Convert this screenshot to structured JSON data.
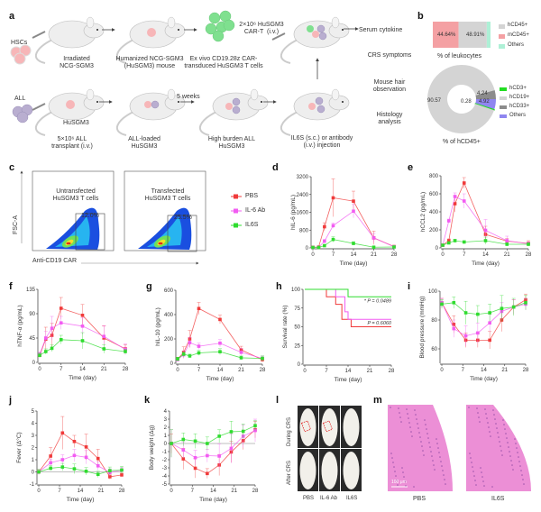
{
  "panel_labels": [
    "a",
    "b",
    "c",
    "d",
    "e",
    "f",
    "g",
    "h",
    "i",
    "j",
    "k",
    "l",
    "m"
  ],
  "a": {
    "hscs": "HSCs",
    "all": "ALL",
    "step1": "Irradiated\nNCG-SGM3",
    "step2": "Humanized NCG-SGM3\n(HuSGM3) mouse",
    "step3": "Ex vivo CD19.28z CAR-\ntransduced HuSGM3 T cells",
    "cart_dose": "2×10⁶ HuSGM3\nCAR-T  (i.v.)",
    "husgm3": "HuSGM3",
    "all_dose": "5×10⁶ ALL\ntransplant (i.v.)",
    "all_loaded": "ALL-loaded\nHuSGM3",
    "weeks": "5 weeks",
    "high_burden": "High burden ALL\nHuSGM3",
    "injection": "IL6S (s.c.) or antibody\n(i.v.) injection",
    "readouts": [
      "Serum cytokine",
      "CRS symptoms",
      "Mouse hair\nobservation",
      "Histology\nanalysis"
    ],
    "colors": {
      "hsc": "#f7b6b8",
      "all": "#b9aed0",
      "cart": "#7fe08f",
      "mouse": "#eeeeee"
    }
  },
  "b": {
    "bar": {
      "segments": [
        {
          "label": "44.64%",
          "value": 44.64,
          "color": "#f4a0a3"
        },
        {
          "label": "48.91%",
          "value": 48.91,
          "color": "#d4d4d4"
        },
        {
          "label": "",
          "value": 6.45,
          "color": "#aef0d6"
        }
      ],
      "caption": "% of leukocytes",
      "legend": [
        {
          "label": "hCD45+",
          "color": "#d4d4d4"
        },
        {
          "label": "mCD45+",
          "color": "#f4a0a3"
        },
        {
          "label": "Others",
          "color": "#aef0d6"
        }
      ]
    },
    "donut": {
      "segments": [
        {
          "label": "90.57",
          "value": 90.57,
          "color": "#d4d4d4"
        },
        {
          "label": "4.24",
          "value": 4.24,
          "color": "#8c8c8c"
        },
        {
          "label": "4.92",
          "value": 4.92,
          "color": "#8f86f0"
        },
        {
          "label": "0.28",
          "value": 0.28,
          "color": "#22dd22"
        }
      ],
      "caption": "% of hCD45+",
      "legend": [
        {
          "label": "hCD3+",
          "color": "#22dd22"
        },
        {
          "label": "hCD19+",
          "color": "#d4d4d4"
        },
        {
          "label": "hCD33+",
          "color": "#8c8c8c"
        },
        {
          "label": "Others",
          "color": "#8f86f0"
        }
      ]
    }
  },
  "c": {
    "plots": [
      {
        "title": "Untransfected\nHuSGM3 T cells",
        "gate": "12.0%"
      },
      {
        "title": "Transfected\nHuSGM3 T cells",
        "gate": "25.5%"
      }
    ],
    "ylabel": "FSC-A",
    "xlabel": "Anti-CD19 CAR"
  },
  "legend": [
    {
      "label": "PBS",
      "color": "#f03a3a"
    },
    {
      "label": "IL-6 Ab",
      "color": "#f25cf2"
    },
    {
      "label": "IL6S",
      "color": "#2fdc2f"
    }
  ],
  "chart_data": [
    {
      "id": "d",
      "type": "line",
      "xlabel": "Time (day)",
      "ylabel": "hIL-6 (pg/mL)",
      "xlim": [
        0,
        28
      ],
      "ylim": [
        0,
        3200
      ],
      "xticks": [
        0,
        7,
        14,
        21,
        28
      ],
      "yticks": [
        0,
        800,
        1600,
        2400,
        3200
      ],
      "x": [
        0,
        2,
        4,
        7,
        14,
        21,
        28
      ],
      "series": [
        {
          "name": "PBS",
          "values": [
            30,
            40,
            950,
            2250,
            2100,
            450,
            60
          ],
          "err": [
            20,
            20,
            180,
            850,
            450,
            300,
            40
          ]
        },
        {
          "name": "IL-6 Ab",
          "values": [
            20,
            30,
            300,
            1000,
            1650,
            450,
            50
          ],
          "err": [
            10,
            10,
            80,
            120,
            300,
            200,
            30
          ]
        },
        {
          "name": "IL6S",
          "values": [
            20,
            20,
            100,
            380,
            200,
            30,
            40
          ],
          "err": [
            10,
            10,
            40,
            120,
            80,
            20,
            20
          ]
        }
      ]
    },
    {
      "id": "e",
      "type": "line",
      "xlabel": "Time (day)",
      "ylabel": "hCCL2 (pg/mL)",
      "xlim": [
        0,
        28
      ],
      "ylim": [
        0,
        800
      ],
      "xticks": [
        0,
        7,
        14,
        21,
        28
      ],
      "yticks": [
        0,
        200,
        400,
        600,
        800
      ],
      "x": [
        0,
        2,
        4,
        7,
        14,
        21,
        28
      ],
      "series": [
        {
          "name": "PBS",
          "values": [
            30,
            80,
            490,
            720,
            150,
            75,
            50
          ],
          "err": [
            10,
            20,
            90,
            60,
            90,
            30,
            30
          ]
        },
        {
          "name": "IL-6 Ab",
          "values": [
            30,
            300,
            570,
            520,
            195,
            80,
            45
          ],
          "err": [
            10,
            20,
            40,
            80,
            120,
            50,
            20
          ]
        },
        {
          "name": "IL6S",
          "values": [
            30,
            55,
            80,
            65,
            80,
            40,
            40
          ],
          "err": [
            10,
            15,
            15,
            15,
            40,
            15,
            15
          ]
        }
      ]
    },
    {
      "id": "f",
      "type": "line",
      "xlabel": "Time (day)",
      "ylabel": "hTNF-α (pg/mL)",
      "xlim": [
        0,
        28
      ],
      "ylim": [
        0,
        135
      ],
      "xticks": [
        0,
        7,
        14,
        21,
        28
      ],
      "yticks": [
        0,
        45,
        90,
        135
      ],
      "x": [
        0,
        2,
        4,
        7,
        14,
        21,
        28
      ],
      "series": [
        {
          "name": "PBS",
          "values": [
            13,
            43,
            50,
            100,
            87,
            45,
            25
          ],
          "err": [
            4,
            22,
            22,
            20,
            20,
            22,
            8
          ]
        },
        {
          "name": "IL-6 Ab",
          "values": [
            15,
            45,
            63,
            73,
            67,
            48,
            24
          ],
          "err": [
            4,
            12,
            22,
            12,
            15,
            20,
            10
          ]
        },
        {
          "name": "IL6S",
          "values": [
            13,
            20,
            26,
            42,
            40,
            25,
            20
          ],
          "err": [
            4,
            5,
            6,
            8,
            15,
            8,
            4
          ]
        }
      ]
    },
    {
      "id": "g",
      "type": "line",
      "xlabel": "Time (day)",
      "ylabel": "hIL-10 (pg/mL)",
      "xlim": [
        0,
        28
      ],
      "ylim": [
        0,
        600
      ],
      "xticks": [
        0,
        7,
        14,
        21,
        28
      ],
      "yticks": [
        0,
        200,
        400,
        600
      ],
      "x": [
        0,
        2,
        4,
        7,
        14,
        21,
        28
      ],
      "series": [
        {
          "name": "PBS",
          "values": [
            35,
            90,
            200,
            450,
            360,
            110,
            30
          ],
          "err": [
            15,
            45,
            70,
            50,
            35,
            30,
            20
          ]
        },
        {
          "name": "IL-6 Ab",
          "values": [
            30,
            70,
            170,
            140,
            165,
            90,
            40
          ],
          "err": [
            15,
            30,
            40,
            25,
            30,
            30,
            20
          ]
        },
        {
          "name": "IL6S",
          "values": [
            35,
            75,
            60,
            85,
            95,
            45,
            40
          ],
          "err": [
            15,
            20,
            15,
            20,
            25,
            15,
            20
          ]
        }
      ]
    },
    {
      "id": "h",
      "type": "step",
      "xlabel": "Time (day)",
      "ylabel": "Survival rate (%)",
      "xlim": [
        0,
        28
      ],
      "ylim": [
        0,
        100
      ],
      "xticks": [
        0,
        7,
        14,
        21,
        28
      ],
      "yticks": [
        0,
        25,
        50,
        75,
        100
      ],
      "series": [
        {
          "name": "PBS",
          "x": [
            0,
            7,
            10,
            12,
            15,
            28
          ],
          "values": [
            100,
            90,
            80,
            60,
            50,
            50
          ]
        },
        {
          "name": "IL-6 Ab",
          "x": [
            0,
            10,
            13,
            14,
            28
          ],
          "values": [
            100,
            90,
            70,
            60,
            60
          ]
        },
        {
          "name": "IL6S",
          "x": [
            0,
            14,
            28
          ],
          "values": [
            100,
            90,
            90
          ]
        }
      ],
      "annotations": [
        {
          "text": "* P = 0.0489",
          "x": 28,
          "y": 90,
          "color": "#2fdc2f"
        },
        {
          "text": "P = 0.6060",
          "x": 28,
          "y": 60,
          "color": "#f25cf2"
        }
      ]
    },
    {
      "id": "i",
      "type": "line",
      "xlabel": "Time (day)",
      "ylabel": "Blood pressure (mmHg)",
      "xlim": [
        0,
        28
      ],
      "ylim": [
        50,
        100
      ],
      "xticks": [
        0,
        7,
        14,
        21,
        28
      ],
      "yticks": [
        60,
        80,
        100
      ],
      "x": [
        0,
        4,
        8,
        12,
        16,
        20,
        24,
        28
      ],
      "series": [
        {
          "name": "PBS",
          "values": [
            92,
            77,
            66,
            66,
            66,
            80,
            89,
            94
          ],
          "err": [
            3,
            6,
            5,
            5,
            6,
            8,
            5,
            4
          ]
        },
        {
          "name": "IL-6 Ab",
          "values": [
            92,
            74,
            69,
            71,
            78,
            86,
            89,
            91
          ],
          "err": [
            3,
            6,
            7,
            7,
            6,
            6,
            5,
            4
          ]
        },
        {
          "name": "IL6S",
          "values": [
            91,
            92,
            85,
            84,
            85,
            88,
            89,
            92
          ],
          "err": [
            3,
            4,
            8,
            6,
            6,
            9,
            6,
            5
          ]
        }
      ]
    },
    {
      "id": "j",
      "type": "line",
      "xlabel": "Time (day)",
      "ylabel": "Fever (Δ°C)",
      "xlim": [
        0,
        28
      ],
      "ylim": [
        -1,
        5
      ],
      "xticks": [
        0,
        7,
        14,
        21,
        28
      ],
      "yticks": [
        -1,
        0,
        1,
        2,
        3,
        4,
        5
      ],
      "zero_line": true,
      "x": [
        0,
        4,
        8,
        12,
        16,
        20,
        24,
        28
      ],
      "series": [
        {
          "name": "PBS",
          "values": [
            0,
            1.3,
            3.2,
            2.5,
            2.05,
            1.1,
            -0.4,
            -0.25
          ],
          "err": [
            0.2,
            0.7,
            1.35,
            0.5,
            1.05,
            0.75,
            0.2,
            0.15
          ]
        },
        {
          "name": "IL-6 Ab",
          "values": [
            0,
            0.75,
            1.0,
            1.35,
            1.2,
            0.5,
            -0.05,
            0.15
          ],
          "err": [
            0.2,
            0.3,
            0.4,
            0.5,
            0.55,
            0.35,
            0.3,
            0.2
          ]
        },
        {
          "name": "IL6S",
          "values": [
            0,
            0.3,
            0.4,
            0.25,
            0.05,
            -0.2,
            0.1,
            0.15
          ],
          "err": [
            0.2,
            0.2,
            0.3,
            0.4,
            0.3,
            0.25,
            0.3,
            0.3
          ]
        }
      ]
    },
    {
      "id": "k",
      "type": "line",
      "xlabel": "Time (day)",
      "ylabel": "Body weight (Δg)",
      "xlim": [
        0,
        28
      ],
      "ylim": [
        -5,
        4
      ],
      "xticks": [
        0,
        7,
        14,
        21,
        28
      ],
      "yticks": [
        -5,
        -4,
        -3,
        -2,
        -1,
        0,
        1,
        2,
        3,
        4
      ],
      "zero_line": true,
      "x": [
        0,
        4,
        8,
        12,
        16,
        20,
        24,
        28
      ],
      "series": [
        {
          "name": "PBS",
          "values": [
            0,
            -1.9,
            -3.05,
            -3.7,
            -2.65,
            -1.05,
            0.35,
            1.7
          ],
          "err": [
            1.2,
            1.3,
            1.2,
            0.6,
            1.3,
            1.3,
            1.1,
            1.0
          ]
        },
        {
          "name": "IL-6 Ab",
          "values": [
            0,
            -0.8,
            -1.75,
            -1.5,
            -1.55,
            -0.6,
            0.9,
            1.6
          ],
          "err": [
            1.7,
            1.0,
            0.9,
            0.8,
            1.5,
            1.8,
            1.4,
            1.4
          ]
        },
        {
          "name": "IL6S",
          "values": [
            0,
            0.5,
            0.3,
            0,
            0.9,
            1.45,
            1.5,
            2.2
          ],
          "err": [
            1.7,
            0.8,
            0.9,
            0.8,
            0.8,
            1.3,
            0.9,
            0.6
          ]
        }
      ]
    }
  ],
  "l": {
    "rows": [
      "During CRS",
      "After CRS"
    ],
    "cols": [
      "PBS",
      "IL-6 Ab",
      "IL6S"
    ]
  },
  "m": {
    "images": [
      "PBS",
      "IL6S"
    ],
    "scale_bar": "100 μm"
  }
}
